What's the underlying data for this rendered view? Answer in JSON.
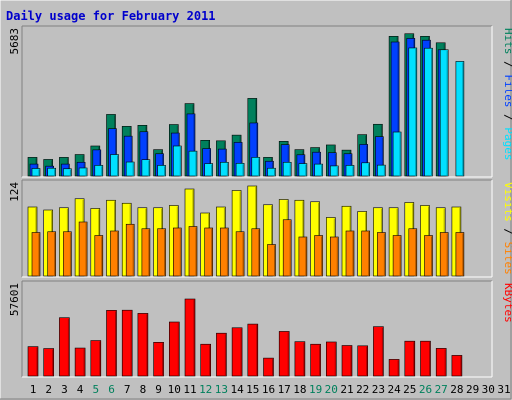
{
  "colors": {
    "background": "#c0c0c0",
    "panel": "#c0c0c0",
    "title": "#0000cc",
    "hits": "#00805c",
    "files": "#0040ff",
    "pages": "#00e0ff",
    "visits": "#ffff00",
    "sites": "#ff8000",
    "kbytes": "#ff0000",
    "weekend_day": "#00805c",
    "weekday": "#000000"
  },
  "chart_data": {
    "type": "bar",
    "title": "Daily usage for February 2011",
    "days": [
      "1",
      "2",
      "3",
      "4",
      "5",
      "6",
      "7",
      "8",
      "9",
      "10",
      "11",
      "12",
      "13",
      "14",
      "15",
      "16",
      "17",
      "18",
      "19",
      "20",
      "21",
      "22",
      "23",
      "24",
      "25",
      "26",
      "27",
      "28",
      "29",
      "30",
      "31"
    ],
    "weekend_days": [
      "5",
      "6",
      "12",
      "13",
      "19",
      "20",
      "26",
      "27"
    ],
    "panels": [
      {
        "name": "hits-files-pages",
        "ymax_label": "5683",
        "ymax": 5683,
        "legend": [
          {
            "text": "Pages",
            "color": "#00e0ff"
          },
          {
            "text": " / ",
            "color": "#000000"
          },
          {
            "text": "Files",
            "color": "#0040ff"
          },
          {
            "text": " / ",
            "color": "#000000"
          },
          {
            "text": "Hits",
            "color": "#00805c"
          }
        ],
        "series": [
          {
            "name": "Hits",
            "color": "#00805c",
            "values": [
              720,
              640,
              720,
              830,
              1160,
              2380,
              1920,
              1960,
              1020,
              1990,
              2800,
              1380,
              1360,
              1580,
              3000,
              720,
              1340,
              1020,
              1100,
              1200,
              1000,
              1600,
              2000,
              5400,
              5500,
              5400,
              5150,
              0,
              0,
              0,
              0
            ]
          },
          {
            "name": "Files",
            "color": "#0040ff",
            "values": [
              460,
              380,
              460,
              530,
              1010,
              1830,
              1540,
              1710,
              860,
              1660,
              2400,
              1060,
              1040,
              1300,
              2050,
              570,
              1210,
              820,
              920,
              900,
              860,
              1220,
              1520,
              5180,
              5320,
              5250,
              4880,
              0,
              0,
              0,
              0
            ]
          },
          {
            "name": "Pages",
            "color": "#00e0ff",
            "values": [
              290,
              300,
              280,
              310,
              410,
              830,
              540,
              630,
              410,
              1160,
              960,
              480,
              530,
              490,
              720,
              300,
              530,
              480,
              460,
              390,
              410,
              510,
              420,
              1700,
              4950,
              4940,
              4880,
              4430,
              0,
              0,
              0
            ]
          }
        ]
      },
      {
        "name": "visits-sites",
        "ymax_label": "124",
        "ymax": 124,
        "legend": [
          {
            "text": "Sites",
            "color": "#ff8000"
          },
          {
            "text": " / ",
            "color": "#000000"
          },
          {
            "text": "Visits",
            "color": "#ffff00"
          }
        ],
        "series": [
          {
            "name": "Visits",
            "color": "#ffff00",
            "values": [
              92,
              88,
              91,
              103,
              90,
              101,
              97,
              91,
              91,
              94,
              116,
              84,
              92,
              114,
              120,
              95,
              102,
              101,
              99,
              78,
              93,
              86,
              91,
              91,
              98,
              94,
              91,
              92,
              0,
              0,
              0
            ]
          },
          {
            "name": "Sites",
            "color": "#ff8000",
            "values": [
              58,
              59,
              59,
              72,
              54,
              60,
              69,
              63,
              63,
              64,
              66,
              64,
              64,
              59,
              63,
              42,
              75,
              52,
              54,
              52,
              60,
              60,
              58,
              54,
              63,
              54,
              58,
              58,
              0,
              0,
              0
            ]
          }
        ]
      },
      {
        "name": "kbytes",
        "ymax_label": "57601",
        "ymax": 57601,
        "legend": [
          {
            "text": "KBytes",
            "color": "#ff0000"
          }
        ],
        "series": [
          {
            "name": "KBytes",
            "color": "#ff0000",
            "values": [
              18400,
              17200,
              36500,
              17500,
              22200,
              41100,
              41200,
              39200,
              21100,
              33800,
              48200,
              19900,
              26800,
              30200,
              32500,
              11200,
              27900,
              21500,
              19900,
              21300,
              19100,
              18900,
              30900,
              10400,
              21800,
              21800,
              17300,
              12900,
              0,
              0,
              0
            ]
          }
        ]
      }
    ]
  }
}
